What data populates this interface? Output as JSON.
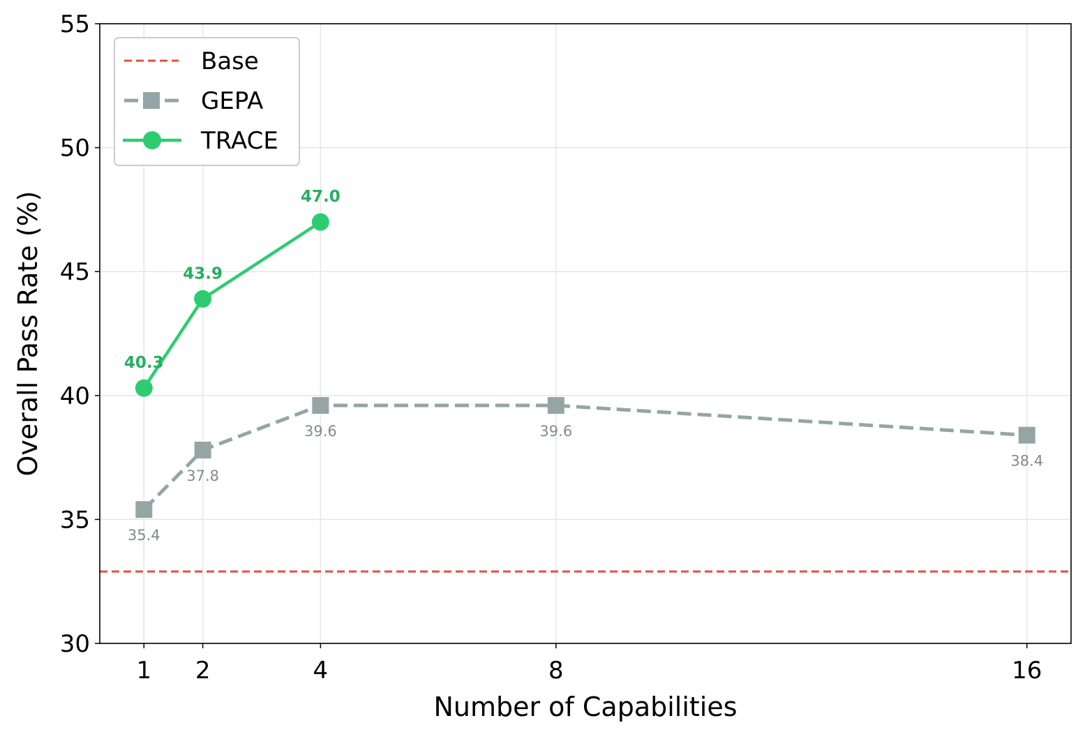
{
  "chart_data": {
    "type": "line",
    "title": "",
    "xlabel": "Number of Capabilities",
    "ylabel": "Overall Pass Rate (%)",
    "xlim": [
      0.25,
      16.75
    ],
    "ylim": [
      30,
      55
    ],
    "x_ticks": [
      1,
      2,
      4,
      8,
      16
    ],
    "y_ticks": [
      30,
      35,
      40,
      45,
      50,
      55
    ],
    "grid": true,
    "legend_position": "top-left",
    "series": [
      {
        "name": "Base",
        "style": "dashed",
        "color": "#e74c3c",
        "hline": 32.9
      },
      {
        "name": "GEPA",
        "style": "dashed",
        "marker": "square",
        "color": "#95a5a6",
        "label_color": "#7f8c8d",
        "x": [
          1,
          2,
          4,
          8,
          16
        ],
        "values": [
          35.4,
          37.8,
          39.6,
          39.6,
          38.4
        ],
        "labels": [
          "35.4",
          "37.8",
          "39.6",
          "39.6",
          "38.4"
        ]
      },
      {
        "name": "TRACE",
        "style": "solid",
        "marker": "circle",
        "color": "#2ecc71",
        "label_color": "#27ae60",
        "x": [
          1,
          2,
          4
        ],
        "values": [
          40.3,
          43.9,
          47.0
        ],
        "labels": [
          "40.3",
          "43.9",
          "47.0"
        ]
      }
    ]
  }
}
